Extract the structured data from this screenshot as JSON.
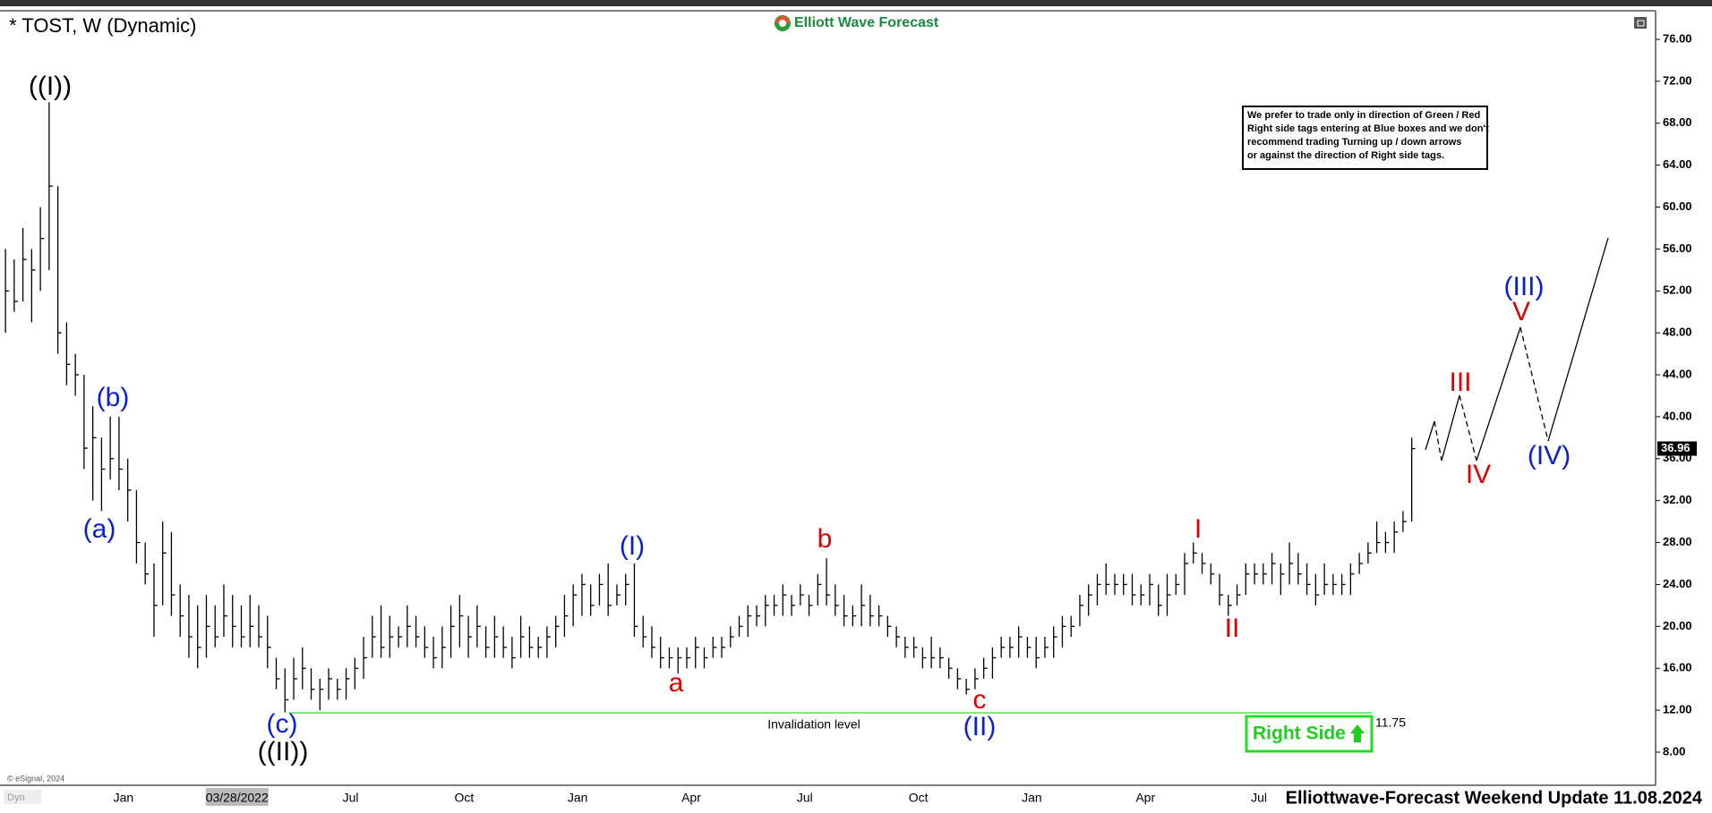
{
  "header": {
    "title": "* TOST, W (Dynamic)",
    "logo": "Elliott Wave Forecast"
  },
  "note": [
    "We prefer to trade only in direction of Green / Red",
    "Right side tags entering at Blue boxes and we don't",
    "recommend trading Turning up / down arrows",
    "or against the direction of Right side tags."
  ],
  "waves": [
    "((I))",
    "(b)",
    "(a)",
    "(c)",
    "((II))",
    "(I)",
    "a",
    "b",
    "c",
    "(II)",
    "I",
    "II",
    "III",
    "IV",
    "V",
    "(III)",
    "(IV)"
  ],
  "right_side": "Right Side",
  "footer": {
    "copyright": "© eSignal, 2024",
    "dyn": "Dyn",
    "update": "Elliottwave-Forecast Weekend Update 11.08.2024"
  },
  "chart_data": {
    "type": "ohlc",
    "color": "#000000",
    "categories": [
      null,
      null,
      null,
      null,
      null,
      null,
      null,
      null,
      null,
      null,
      null,
      null,
      null,
      "Jan",
      null,
      null,
      null,
      null,
      null,
      null,
      null,
      null,
      null,
      null,
      null,
      null,
      "03/28/2022",
      null,
      null,
      null,
      null,
      null,
      null,
      null,
      null,
      null,
      null,
      null,
      null,
      "Jul",
      null,
      null,
      null,
      null,
      null,
      null,
      null,
      null,
      null,
      null,
      null,
      null,
      "Oct",
      null,
      null,
      null,
      null,
      null,
      null,
      null,
      null,
      null,
      null,
      null,
      null,
      "Jan",
      null,
      null,
      null,
      null,
      null,
      null,
      null,
      null,
      null,
      null,
      null,
      null,
      "Apr",
      null,
      null,
      null,
      null,
      null,
      null,
      null,
      null,
      null,
      null,
      null,
      null,
      "Jul",
      null,
      null,
      null,
      null,
      null,
      null,
      null,
      null,
      null,
      null,
      null,
      null,
      "Oct",
      null,
      null,
      null,
      null,
      null,
      null,
      null,
      null,
      null,
      null,
      null,
      null,
      "Jan",
      null,
      null,
      null,
      null,
      null,
      null,
      null,
      null,
      null,
      null,
      null,
      null,
      "Apr",
      null,
      null,
      null,
      null,
      null,
      null,
      null,
      null,
      null,
      null,
      null,
      null,
      "Jul",
      null,
      null,
      null,
      null,
      null,
      null,
      null,
      null,
      null,
      null,
      null,
      null,
      null,
      null,
      null,
      null,
      null,
      null
    ],
    "high": [
      56,
      55,
      58,
      56,
      60,
      70,
      62,
      49,
      46,
      44,
      41,
      38,
      40,
      40,
      36,
      33,
      28,
      26,
      30,
      29,
      24,
      23,
      22,
      23,
      22,
      24,
      23,
      22,
      23,
      22,
      21,
      17,
      16,
      17,
      18,
      16,
      15,
      16,
      15,
      16,
      17,
      19,
      21,
      22,
      21,
      20,
      22,
      21,
      20,
      19,
      20,
      22,
      23,
      21,
      22,
      20,
      21,
      20,
      19,
      21,
      20,
      19,
      20,
      21,
      23,
      24,
      25,
      24,
      25,
      26,
      24,
      25,
      26,
      21,
      20,
      19,
      18,
      18,
      18,
      19,
      18,
      19,
      19,
      20,
      21,
      22,
      22,
      23,
      23,
      24,
      23,
      24,
      23,
      25,
      26.5,
      24,
      23,
      22,
      24,
      23,
      22,
      21,
      20,
      19,
      19,
      18,
      19,
      18,
      17,
      16,
      15,
      16,
      17,
      18,
      19,
      19,
      20,
      19,
      19,
      19,
      20,
      21,
      21,
      23,
      24,
      25,
      26,
      25,
      25,
      25,
      24,
      25,
      24,
      25,
      25,
      27,
      28,
      27,
      26,
      25,
      23,
      24,
      26,
      26,
      26,
      27,
      26,
      28,
      27,
      26,
      25,
      26,
      25,
      25,
      26,
      27,
      28,
      30,
      29,
      30,
      31,
      38
    ],
    "low": [
      48,
      50,
      51,
      49,
      52,
      54,
      46,
      43,
      42,
      35,
      32,
      31,
      34,
      33,
      30,
      26,
      24,
      19,
      22,
      21,
      19,
      17,
      16,
      17,
      18,
      19,
      18,
      18,
      18,
      18,
      16,
      14,
      11.8,
      13,
      14,
      13,
      12,
      13,
      13,
      13,
      14,
      15,
      17,
      17,
      17,
      18,
      18,
      18,
      17,
      16,
      16,
      17,
      18,
      17,
      18,
      17,
      17,
      17,
      16,
      17,
      17,
      17,
      17,
      18,
      19,
      20,
      21,
      21,
      22,
      21,
      22,
      22,
      19,
      18,
      17,
      16,
      16,
      15.5,
      16,
      16,
      16,
      17,
      17,
      18,
      19,
      19,
      20,
      20,
      21,
      21,
      21,
      22,
      21,
      22,
      22,
      21,
      20,
      20,
      20,
      20,
      20,
      19,
      18,
      17,
      17,
      16,
      16,
      16,
      15,
      14,
      13.5,
      14,
      15,
      15,
      17,
      17,
      17,
      17,
      16,
      17,
      17,
      18,
      19,
      20,
      21,
      22,
      23,
      23,
      23,
      22,
      22,
      22,
      21,
      21,
      23,
      23,
      26,
      25,
      24,
      22,
      21,
      22,
      23,
      24,
      24,
      24,
      23,
      24,
      24,
      23,
      22,
      23,
      23,
      23,
      23,
      25,
      26,
      27,
      27,
      27,
      29,
      30
    ],
    "close": [
      52,
      51,
      55,
      54,
      57,
      62,
      48,
      45,
      44,
      37,
      38,
      35,
      36,
      35,
      33,
      28,
      25,
      22,
      27,
      23,
      21,
      19,
      18,
      20,
      19,
      21,
      20,
      19,
      20,
      19,
      18,
      15,
      13,
      15,
      16,
      14,
      14,
      15,
      14,
      15,
      16,
      17,
      19,
      18,
      19,
      19,
      20,
      19,
      18,
      17,
      18,
      20,
      21,
      19,
      20,
      18,
      19,
      18,
      17,
      19,
      18,
      18,
      19,
      20,
      21,
      23,
      24,
      22,
      24,
      22,
      23,
      24,
      20,
      19,
      18,
      17,
      17,
      17,
      17,
      18,
      17,
      18,
      18,
      19,
      20,
      21,
      21,
      22,
      22,
      23,
      22,
      23,
      22,
      24,
      23,
      22,
      21,
      21,
      22,
      21,
      21,
      20,
      19,
      18,
      18,
      17,
      17,
      17,
      16,
      15,
      14,
      15,
      16,
      17,
      18,
      18,
      19,
      18,
      17,
      18,
      19,
      20,
      20,
      22,
      23,
      24,
      24,
      24,
      24,
      23,
      23,
      24,
      22,
      23,
      24,
      26,
      27,
      26,
      25,
      23,
      22,
      23,
      25,
      25,
      25,
      26,
      25,
      26,
      25,
      24,
      23,
      24,
      24,
      24,
      25,
      26,
      27,
      28,
      28,
      29,
      30,
      36.96
    ],
    "ylim": [
      4.84,
      78.73
    ],
    "yticks": [
      {
        "value": 8,
        "label": "8.00"
      },
      {
        "value": 12,
        "label": "12.00"
      },
      {
        "value": 16,
        "label": "16.00"
      },
      {
        "value": 20,
        "label": "20.00"
      },
      {
        "value": 24,
        "label": "24.00"
      },
      {
        "value": 28,
        "label": "28.00"
      },
      {
        "value": 32,
        "label": "32.00"
      },
      {
        "value": 36,
        "label": "36.00"
      },
      {
        "value": 40,
        "label": "40.00"
      },
      {
        "value": 44,
        "label": "44.00"
      },
      {
        "value": 48,
        "label": "48.00"
      },
      {
        "value": 52,
        "label": "52.00"
      },
      {
        "value": 56,
        "label": "56.00"
      },
      {
        "value": 60,
        "label": "60.00"
      },
      {
        "value": 64,
        "label": "64.00"
      },
      {
        "value": 68,
        "label": "68.00"
      },
      {
        "value": 72,
        "label": "72.00"
      },
      {
        "value": 76,
        "label": "76.00"
      }
    ],
    "invalidation": 11.75,
    "invalidation_label": "Invalidation level"
  }
}
